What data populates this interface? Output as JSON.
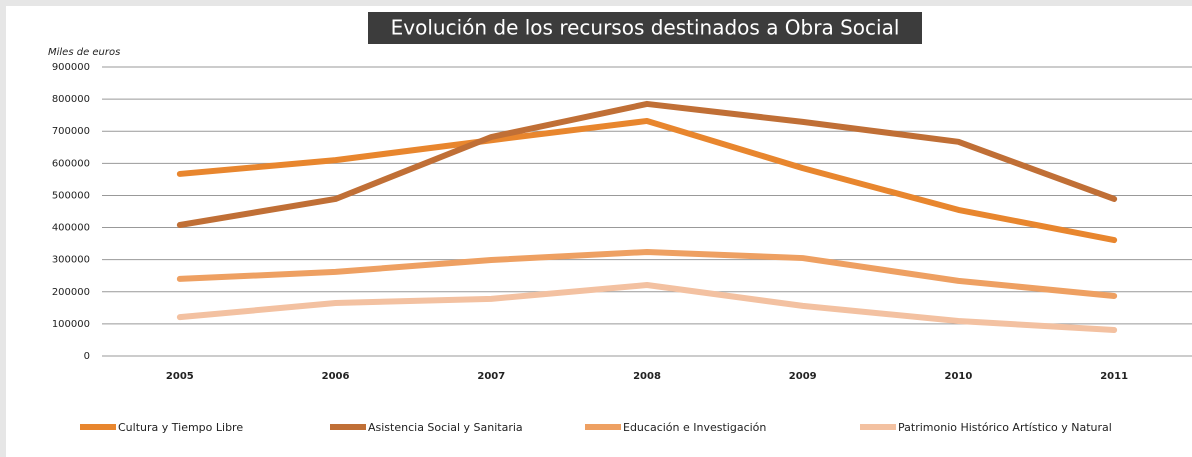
{
  "chart_data": {
    "type": "line",
    "title": "Evolución de los recursos destinados a Obra Social",
    "y_label": "Miles de euros",
    "categories": [
      "2005",
      "2006",
      "2007",
      "2008",
      "2009",
      "2010",
      "2011"
    ],
    "series": [
      {
        "name": "Cultura y Tiempo Libre",
        "color": "#e8862e",
        "values": [
          567000,
          610000,
          672000,
          732000,
          585000,
          455000,
          361000
        ]
      },
      {
        "name": "Asistencia Social y Sanitaria",
        "color": "#c06f36",
        "values": [
          408000,
          489000,
          682000,
          785000,
          729000,
          667000,
          489000
        ]
      },
      {
        "name": "Educación e Investigación",
        "color": "#eea062",
        "values": [
          240000,
          262000,
          299000,
          324000,
          305000,
          234000,
          187000
        ]
      },
      {
        "name": "Patrimonio Histórico Artístico y Natural",
        "color": "#f3c1a1",
        "values": [
          121000,
          165000,
          178000,
          221000,
          156000,
          109000,
          81000
        ]
      }
    ],
    "ylim": [
      0,
      900000
    ],
    "yticks": [
      0,
      100000,
      200000,
      300000,
      400000,
      500000,
      600000,
      700000,
      800000,
      900000
    ],
    "grid": true,
    "legend": "bottom"
  }
}
